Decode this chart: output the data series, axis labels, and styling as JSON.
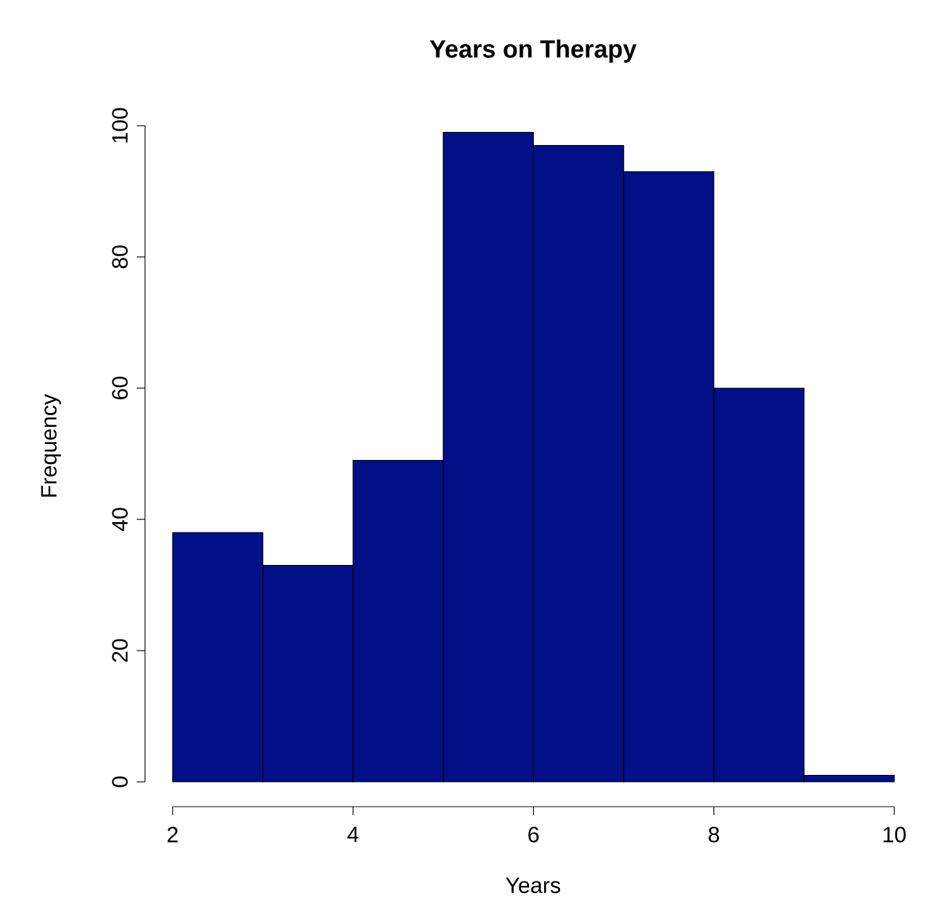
{
  "chart_data": {
    "type": "histogram",
    "title": "Years on Therapy",
    "xlabel": "Years",
    "ylabel": "Frequency",
    "bins": [
      2,
      3,
      4,
      5,
      6,
      7,
      8,
      9,
      10
    ],
    "values": [
      38,
      33,
      49,
      99,
      97,
      93,
      60,
      1
    ],
    "color": "#020f87",
    "xlim": [
      2,
      10
    ],
    "ylim": [
      0,
      100
    ],
    "xticks": [
      2,
      4,
      6,
      8,
      10
    ],
    "yticks": [
      0,
      20,
      40,
      60,
      80,
      100
    ],
    "grid": false
  }
}
